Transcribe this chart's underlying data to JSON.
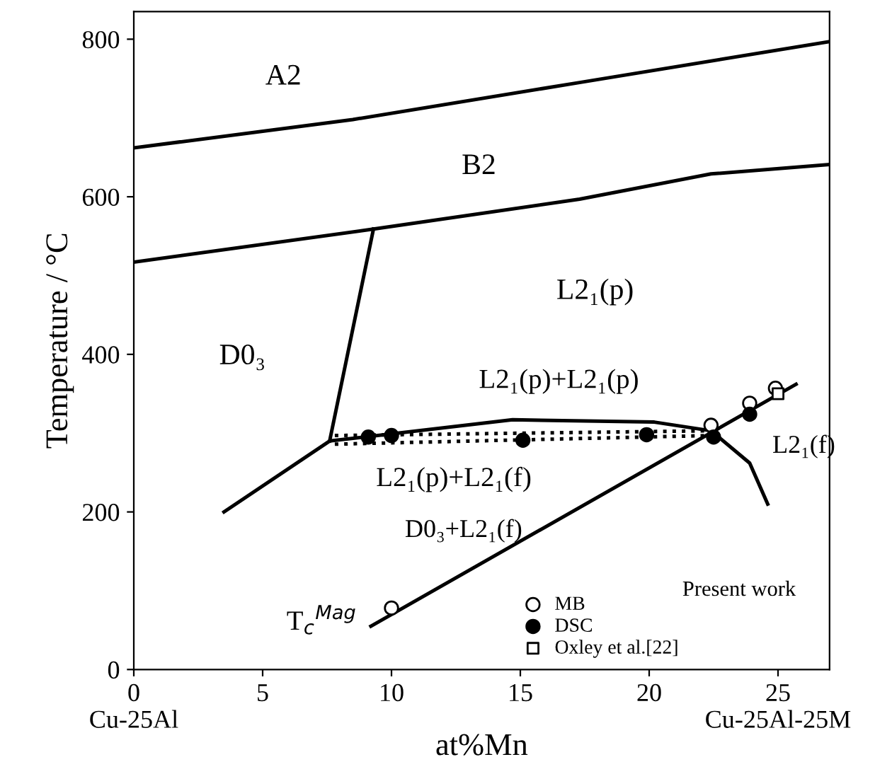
{
  "chart_data": {
    "type": "line",
    "xlabel": "at%Mn",
    "ylabel": "Temperature / °C",
    "xlim": [
      0,
      27
    ],
    "ylim": [
      0,
      835
    ],
    "xticks": [
      {
        "value": 0,
        "label": "0\nCu-25Al"
      },
      5,
      10,
      15,
      20,
      {
        "value": 25,
        "label": "25\nCu-25Al-25M"
      }
    ],
    "yticks": [
      0,
      200,
      400,
      600,
      800
    ],
    "grid": false,
    "legend": "bottom right",
    "marker": "none",
    "line_style": "solid",
    "series": [
      {
        "color": "#000000",
        "x": [
          0,
          8.5,
          17.3,
          27
        ],
        "values": [
          662,
          698,
          745,
          797
        ]
      },
      {
        "color": "#000000",
        "x": [
          0,
          9.3,
          17.3,
          22.4,
          27
        ],
        "values": [
          517,
          559,
          597,
          629,
          641
        ]
      },
      {
        "color": "#000000",
        "x": [
          9.3,
          7.6
        ],
        "values": [
          559,
          290
        ]
      },
      {
        "color": "#000000",
        "x": [
          3.5,
          7.6,
          14.7,
          20.2,
          22.4,
          23.9,
          24.6
        ],
        "values": [
          200,
          290,
          317,
          314,
          303,
          262,
          210
        ]
      },
      {
        "color": "#000000",
        "line_style": "dotted",
        "x": [
          7.8,
          22.4
        ],
        "values": [
          297,
          303
        ]
      },
      {
        "color": "#000000",
        "line_style": "dotted",
        "x": [
          7.8,
          22.4
        ],
        "values": [
          286,
          297
        ]
      },
      {
        "color": "#000000",
        "x": [
          9.2,
          25.7
        ],
        "values": [
          55,
          362
        ]
      },
      {
        "name": "MB",
        "type": "scatter",
        "marker": "circle",
        "color": "#000000",
        "x": [
          10,
          22.4,
          23.9,
          24.9
        ],
        "values": [
          78,
          310,
          338,
          357
        ]
      },
      {
        "name": "DSC",
        "type": "scatter",
        "marker": "circle",
        "color": "#000000",
        "x": [
          9.1,
          10,
          15.1,
          19.9,
          22.5,
          23.9
        ],
        "values": [
          295,
          297,
          291,
          298,
          295,
          324
        ]
      },
      {
        "name": "Oxley et al.[22]",
        "type": "scatter",
        "marker": "square",
        "color": "#000000",
        "x": [
          25
        ],
        "values": [
          350
        ]
      }
    ],
    "annotations": [
      "A2",
      "B2",
      "L2₁(p)",
      "D0₃",
      "L2₁(p)+L2₁(p)",
      "L2₁(p)+L2₁(f)",
      "L2₁(f)",
      "D0₃+L2₁(f)",
      "T$_{c}$$^{Mag}$",
      "Present work"
    ]
  }
}
